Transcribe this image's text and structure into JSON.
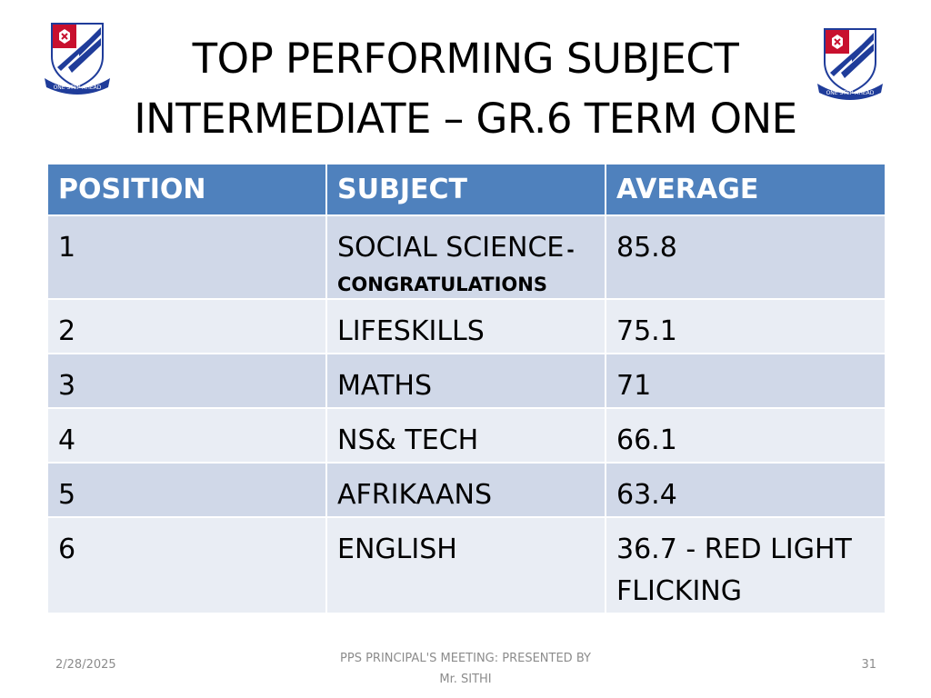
{
  "slide": {
    "title_line1": "TOP  PERFORMING  SUBJECT",
    "title_line2": "INTERMEDIATE – GR.6 TERM ONE"
  },
  "crest": {
    "motto": "ONE STEP AHEAD",
    "colors": {
      "red": "#c8102e",
      "blue": "#1f3c9a",
      "white": "#ffffff"
    }
  },
  "table": {
    "headers": [
      "POSITION",
      "SUBJECT",
      "AVERAGE"
    ],
    "header_color": "#4f81bd",
    "band_colors": [
      "#d0d8e8",
      "#e9edf4"
    ],
    "rows": [
      {
        "position": "1",
        "subject": "SOCIAL  SCIENCE",
        "subject_sep": "-",
        "subject_note": "CONGRATULATIONS",
        "average": "85.8"
      },
      {
        "position": "2",
        "subject": "LIFESKILLS",
        "average": "75.1"
      },
      {
        "position": "3",
        "subject": "MATHS",
        "average": "71"
      },
      {
        "position": "4",
        "subject": "NS&  TECH",
        "average": "66.1"
      },
      {
        "position": "5",
        "subject": "AFRIKAANS",
        "average": "63.4"
      },
      {
        "position": "6",
        "subject": "ENGLISH",
        "average": "36.7 -  RED LIGHT FLICKING"
      }
    ]
  },
  "footer": {
    "date": "2/28/2025",
    "center_line1": "PPS  PRINCIPAL'S MEETING: PRESENTED  BY",
    "center_line2": "Mr. SITHI",
    "page_number": "31"
  }
}
